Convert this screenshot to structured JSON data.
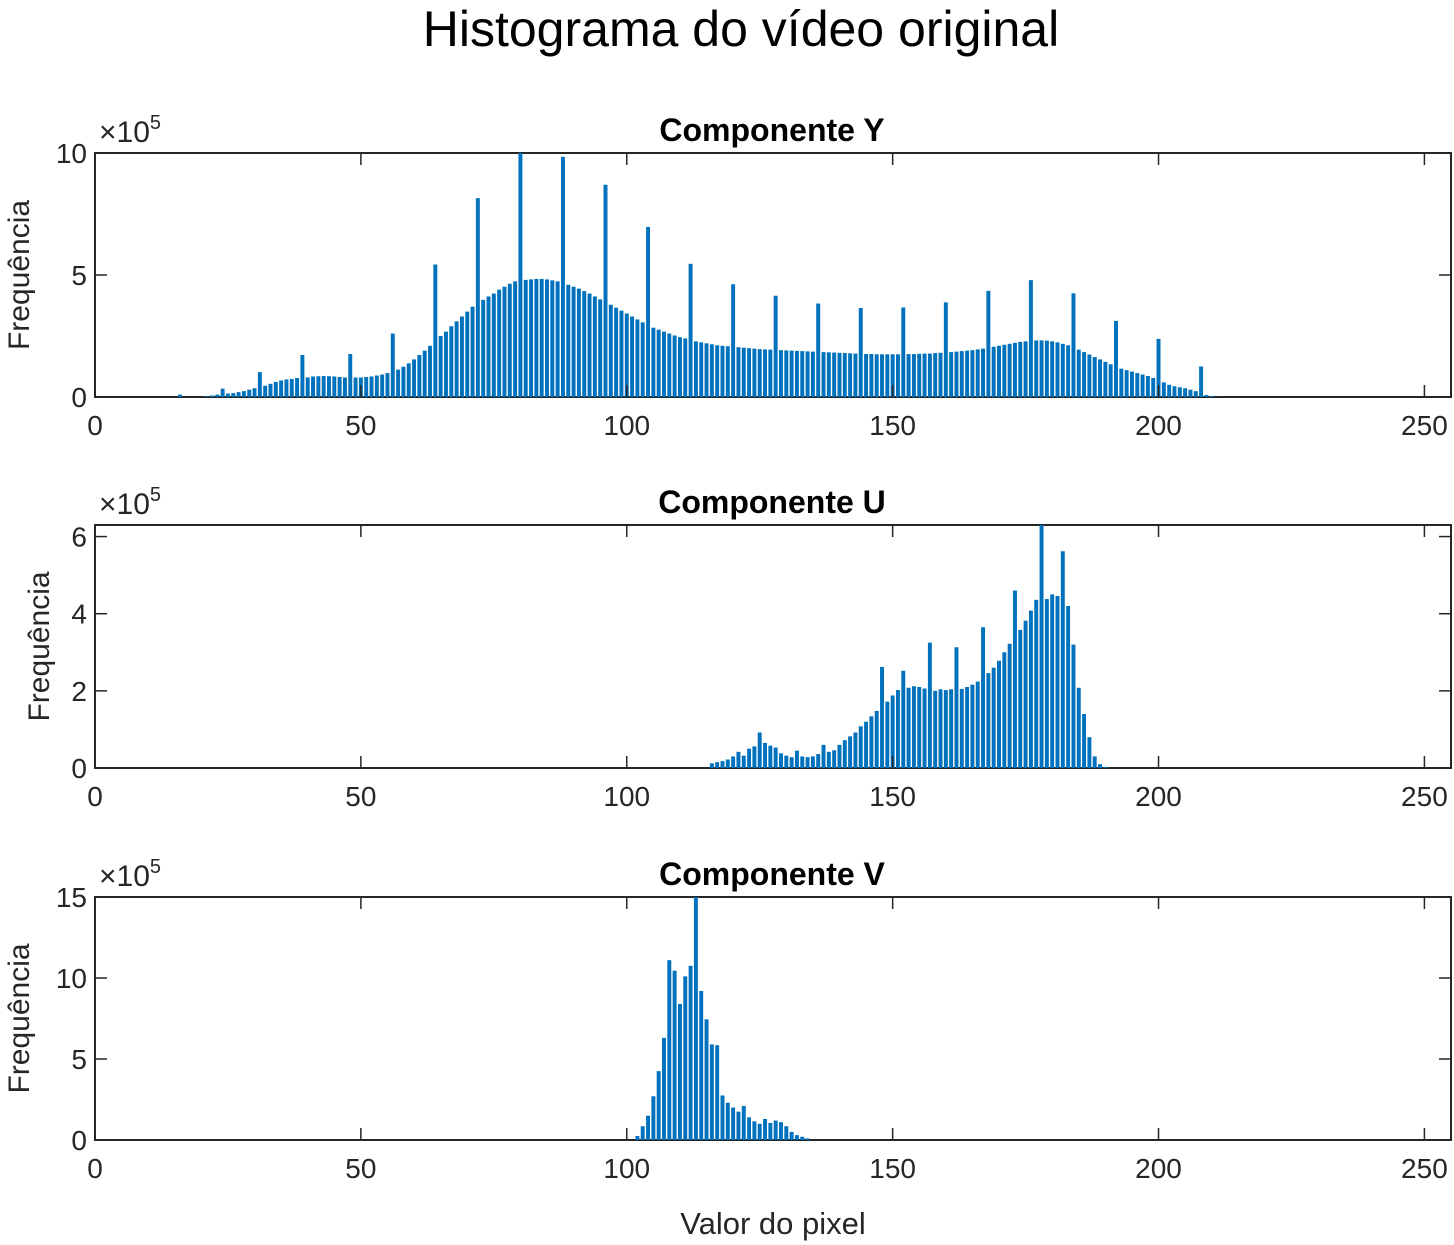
{
  "title": "Histograma do vídeo original",
  "colors": {
    "bar": "#0072BD",
    "axis": "#262626"
  },
  "chart_data": [
    {
      "type": "bar",
      "title": "Componente Y",
      "xlabel": "",
      "ylabel": "Frequência",
      "exponent_label": {
        "base": "×10",
        "exp": "5"
      },
      "xlim": [
        0,
        255
      ],
      "ylim": [
        0,
        10
      ],
      "xticks": [
        "0",
        "50",
        "100",
        "150",
        "200",
        "250"
      ],
      "yticks": [
        "0",
        "5",
        "10"
      ],
      "x_start": 16,
      "values": [
        0.1,
        0,
        0,
        0,
        0,
        0.03,
        0.06,
        0.1,
        0.34,
        0.14,
        0.16,
        0.2,
        0.24,
        0.3,
        0.36,
        1.02,
        0.46,
        0.54,
        0.62,
        0.68,
        0.72,
        0.74,
        0.78,
        1.72,
        0.8,
        0.84,
        0.85,
        0.86,
        0.85,
        0.84,
        0.82,
        0.8,
        1.76,
        0.8,
        0.8,
        0.82,
        0.84,
        0.88,
        0.92,
        0.98,
        2.6,
        1.12,
        1.24,
        1.38,
        1.54,
        1.72,
        1.9,
        2.1,
        5.43,
        2.5,
        2.68,
        2.9,
        3.1,
        3.3,
        3.5,
        3.7,
        8.15,
        3.98,
        4.12,
        4.24,
        4.4,
        4.52,
        4.64,
        4.74,
        10.02,
        4.8,
        4.82,
        4.84,
        4.84,
        4.82,
        4.78,
        4.74,
        9.84,
        4.6,
        4.52,
        4.44,
        4.34,
        4.24,
        4.12,
        4.0,
        8.7,
        3.78,
        3.66,
        3.54,
        3.42,
        3.3,
        3.18,
        3.06,
        6.97,
        2.84,
        2.76,
        2.68,
        2.6,
        2.52,
        2.45,
        2.4,
        5.46,
        2.28,
        2.24,
        2.2,
        2.16,
        2.12,
        2.1,
        2.08,
        4.62,
        2.04,
        2.02,
        2.0,
        1.98,
        1.96,
        1.95,
        1.94,
        4.15,
        1.92,
        1.91,
        1.9,
        1.89,
        1.88,
        1.87,
        1.86,
        3.83,
        1.84,
        1.83,
        1.82,
        1.81,
        1.8,
        1.79,
        1.78,
        3.65,
        1.76,
        1.76,
        1.75,
        1.75,
        1.75,
        1.75,
        1.75,
        3.67,
        1.76,
        1.76,
        1.77,
        1.78,
        1.78,
        1.8,
        1.81,
        3.88,
        1.84,
        1.86,
        1.88,
        1.9,
        1.92,
        1.95,
        1.98,
        4.35,
        2.06,
        2.1,
        2.14,
        2.18,
        2.22,
        2.26,
        2.28,
        4.79,
        2.32,
        2.32,
        2.31,
        2.28,
        2.24,
        2.18,
        2.12,
        4.25,
        1.94,
        1.84,
        1.74,
        1.64,
        1.54,
        1.44,
        1.34,
        3.12,
        1.16,
        1.1,
        1.04,
        0.98,
        0.92,
        0.86,
        0.78,
        2.38,
        0.6,
        0.5,
        0.44,
        0.4,
        0.36,
        0.3,
        0.24,
        1.25,
        0.08,
        0.04,
        0.01
      ]
    },
    {
      "type": "bar",
      "title": "Componente U",
      "xlabel": "",
      "ylabel": "Frequência",
      "exponent_label": {
        "base": "×10",
        "exp": "5"
      },
      "xlim": [
        0,
        255
      ],
      "ylim": [
        0,
        6.3
      ],
      "xticks": [
        "0",
        "50",
        "100",
        "150",
        "200",
        "250"
      ],
      "yticks": [
        "0",
        "2",
        "4",
        "6"
      ],
      "x_start": 116,
      "values": [
        0.12,
        0.15,
        0.18,
        0.22,
        0.3,
        0.42,
        0.32,
        0.5,
        0.56,
        0.92,
        0.65,
        0.58,
        0.53,
        0.38,
        0.32,
        0.28,
        0.45,
        0.3,
        0.28,
        0.3,
        0.36,
        0.6,
        0.42,
        0.46,
        0.6,
        0.72,
        0.82,
        0.92,
        1.08,
        1.2,
        1.34,
        1.48,
        2.62,
        1.72,
        1.88,
        2.02,
        2.52,
        2.08,
        2.12,
        2.1,
        2.06,
        3.25,
        2.0,
        2.04,
        2.02,
        2.04,
        3.13,
        2.05,
        2.1,
        2.16,
        2.24,
        3.65,
        2.46,
        2.6,
        2.78,
        3.0,
        3.22,
        4.6,
        3.58,
        3.82,
        4.08,
        4.36,
        6.34,
        4.38,
        4.5,
        4.46,
        5.62,
        4.2,
        3.2,
        2.08,
        1.4,
        0.8,
        0.3,
        0.1,
        0.03
      ]
    },
    {
      "type": "bar",
      "title": "Componente V",
      "xlabel": "Valor do pixel",
      "ylabel": "Frequência",
      "exponent_label": {
        "base": "×10",
        "exp": "5"
      },
      "xlim": [
        0,
        255
      ],
      "ylim": [
        0,
        15
      ],
      "xticks": [
        "0",
        "50",
        "100",
        "150",
        "200",
        "250"
      ],
      "yticks": [
        "0",
        "5",
        "10",
        "15"
      ],
      "x_start": 102,
      "values": [
        0.25,
        0.85,
        1.5,
        2.7,
        4.25,
        6.3,
        11.1,
        10.45,
        8.4,
        10.1,
        10.75,
        15.0,
        9.2,
        7.45,
        5.9,
        5.85,
        2.75,
        2.3,
        2.0,
        1.75,
        2.1,
        1.4,
        1.15,
        1.0,
        1.3,
        1.05,
        1.2,
        1.1,
        0.85,
        0.5,
        0.3,
        0.2,
        0.1
      ]
    }
  ]
}
